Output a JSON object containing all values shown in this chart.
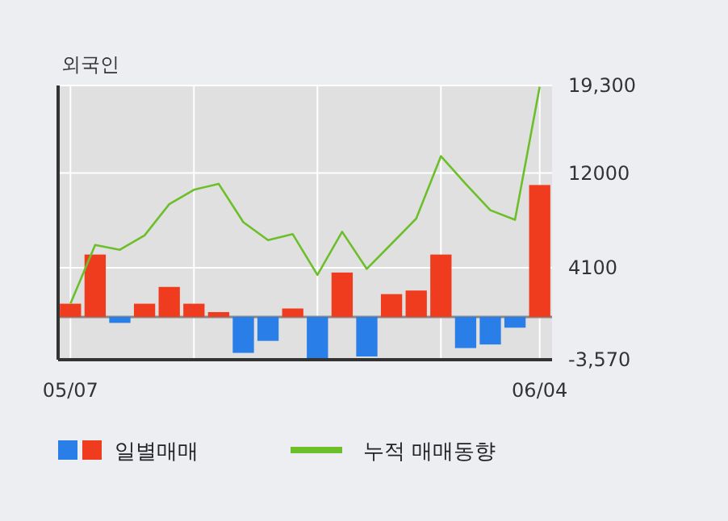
{
  "chart_data": {
    "type": "bar",
    "title": "외국인",
    "categories": [
      "05/07",
      null,
      null,
      null,
      null,
      null,
      null,
      null,
      null,
      null,
      null,
      null,
      null,
      null,
      null,
      null,
      null,
      null,
      null,
      "06/04"
    ],
    "series": [
      {
        "name": "일별매매",
        "colors": [
          "#f03c1e",
          "#f03c1e",
          "#2a7ee8",
          "#f03c1e",
          "#f03c1e",
          "#f03c1e",
          "#f03c1e",
          "#2a7ee8",
          "#2a7ee8",
          "#f03c1e",
          "#2a7ee8",
          "#f03c1e",
          "#2a7ee8",
          "#f03c1e",
          "#f03c1e",
          "#f03c1e",
          "#2a7ee8",
          "#2a7ee8",
          "#2a7ee8",
          "#f03c1e"
        ],
        "values": [
          1100,
          5200,
          -500,
          1100,
          2500,
          1100,
          400,
          -3000,
          -2000,
          700,
          -3500,
          3700,
          -3300,
          1900,
          2200,
          5200,
          -2600,
          -2300,
          -900,
          11000
        ]
      },
      {
        "name": "누적 매매동향",
        "type": "line",
        "color": "#6cbf2a",
        "values": [
          1100,
          6000,
          5600,
          6800,
          9400,
          10600,
          11100,
          7900,
          6400,
          6900,
          3500,
          7100,
          4000,
          6100,
          8200,
          13400,
          11100,
          8900,
          8100,
          19200
        ]
      }
    ],
    "ylim": [
      -3570,
      19300
    ],
    "yticks": [
      {
        "value": 19300,
        "label": "19,300"
      },
      12000,
      4100,
      {
        "value": -3570,
        "label": "-3,570"
      }
    ],
    "grid": true,
    "legend": "bottom"
  }
}
